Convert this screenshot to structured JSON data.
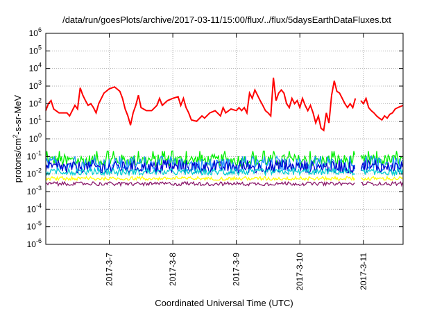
{
  "chart_data": {
    "type": "line",
    "title": "/data/run/goesPlots/archive/2017-03-11/15:00/flux/../flux/5daysEarthDataFluxes.txt",
    "xlabel": "Coordinated Universal Time (UTC)",
    "ylabel": "protons/cm2-s-sr-MeV",
    "ylabel_parts": {
      "pre": "protons/cm",
      "sup": "2",
      "post": "-s-sr-MeV"
    },
    "yscale": "log",
    "ylim_exp": [
      -6,
      6
    ],
    "y_ticks": [
      {
        "base": "10",
        "exp": "-6"
      },
      {
        "base": "10",
        "exp": "-5"
      },
      {
        "base": "10",
        "exp": "-4"
      },
      {
        "base": "10",
        "exp": "-3"
      },
      {
        "base": "10",
        "exp": "-2"
      },
      {
        "base": "10",
        "exp": "-1"
      },
      {
        "base": "10",
        "exp": "0"
      },
      {
        "base": "10",
        "exp": "1"
      },
      {
        "base": "10",
        "exp": "2"
      },
      {
        "base": "10",
        "exp": "3"
      },
      {
        "base": "10",
        "exp": "4"
      },
      {
        "base": "10",
        "exp": "5"
      },
      {
        "base": "10",
        "exp": "6"
      }
    ],
    "xlim": [
      "2017-03-06T00:00",
      "2017-03-11T15:00"
    ],
    "x_ticks": [
      {
        "label": "2017-3-7",
        "date": "2017-03-07T00:00"
      },
      {
        "label": "2017-3-8",
        "date": "2017-03-08T00:00"
      },
      {
        "label": "2017-3-9",
        "date": "2017-03-09T00:00"
      },
      {
        "label": "2017-3-10",
        "date": "2017-03-10T00:00"
      },
      {
        "label": "2017-3-11",
        "date": "2017-03-11T00:00"
      }
    ],
    "grid": true,
    "gap": [
      "2017-03-10T21:00",
      "2017-03-10T23:00"
    ],
    "series": [
      {
        "color": "#ff0000",
        "noisy": false,
        "points": [
          [
            "2017-03-06T00:00",
            40
          ],
          [
            "2017-03-06T01:00",
            100
          ],
          [
            "2017-03-06T02:00",
            150
          ],
          [
            "2017-03-06T03:00",
            50
          ],
          [
            "2017-03-06T05:00",
            30
          ],
          [
            "2017-03-06T08:00",
            30
          ],
          [
            "2017-03-06T09:00",
            20
          ],
          [
            "2017-03-06T10:00",
            40
          ],
          [
            "2017-03-06T11:00",
            80
          ],
          [
            "2017-03-06T12:00",
            50
          ],
          [
            "2017-03-06T13:00",
            800
          ],
          [
            "2017-03-06T14:00",
            300
          ],
          [
            "2017-03-06T15:00",
            150
          ],
          [
            "2017-03-06T16:00",
            80
          ],
          [
            "2017-03-06T17:00",
            100
          ],
          [
            "2017-03-06T18:00",
            60
          ],
          [
            "2017-03-06T19:00",
            30
          ],
          [
            "2017-03-06T20:00",
            100
          ],
          [
            "2017-03-06T22:00",
            400
          ],
          [
            "2017-03-07T00:00",
            700
          ],
          [
            "2017-03-07T02:00",
            900
          ],
          [
            "2017-03-07T04:00",
            500
          ],
          [
            "2017-03-07T05:00",
            200
          ],
          [
            "2017-03-07T06:00",
            50
          ],
          [
            "2017-03-07T07:00",
            20
          ],
          [
            "2017-03-07T08:00",
            6
          ],
          [
            "2017-03-07T09:00",
            30
          ],
          [
            "2017-03-07T10:00",
            80
          ],
          [
            "2017-03-07T11:00",
            300
          ],
          [
            "2017-03-07T12:00",
            60
          ],
          [
            "2017-03-07T14:00",
            40
          ],
          [
            "2017-03-07T16:00",
            40
          ],
          [
            "2017-03-07T18:00",
            80
          ],
          [
            "2017-03-07T19:00",
            200
          ],
          [
            "2017-03-07T20:00",
            80
          ],
          [
            "2017-03-07T22:00",
            150
          ],
          [
            "2017-03-08T00:00",
            200
          ],
          [
            "2017-03-08T02:00",
            250
          ],
          [
            "2017-03-08T03:00",
            80
          ],
          [
            "2017-03-08T04:00",
            200
          ],
          [
            "2017-03-08T05:00",
            60
          ],
          [
            "2017-03-08T06:00",
            30
          ],
          [
            "2017-03-08T07:00",
            12
          ],
          [
            "2017-03-08T09:00",
            10
          ],
          [
            "2017-03-08T11:00",
            20
          ],
          [
            "2017-03-08T12:00",
            15
          ],
          [
            "2017-03-08T14:00",
            30
          ],
          [
            "2017-03-08T16:00",
            40
          ],
          [
            "2017-03-08T18:00",
            20
          ],
          [
            "2017-03-08T19:00",
            60
          ],
          [
            "2017-03-08T20:00",
            30
          ],
          [
            "2017-03-08T22:00",
            50
          ],
          [
            "2017-03-09T00:00",
            40
          ],
          [
            "2017-03-09T01:00",
            60
          ],
          [
            "2017-03-09T02:00",
            40
          ],
          [
            "2017-03-09T03:00",
            60
          ],
          [
            "2017-03-09T04:00",
            30
          ],
          [
            "2017-03-09T05:00",
            400
          ],
          [
            "2017-03-09T06:00",
            200
          ],
          [
            "2017-03-09T07:00",
            600
          ],
          [
            "2017-03-09T08:00",
            300
          ],
          [
            "2017-03-09T09:00",
            150
          ],
          [
            "2017-03-09T10:00",
            80
          ],
          [
            "2017-03-09T11:00",
            40
          ],
          [
            "2017-03-09T12:00",
            30
          ],
          [
            "2017-03-09T13:00",
            20
          ],
          [
            "2017-03-09T14:00",
            3000
          ],
          [
            "2017-03-09T15:00",
            150
          ],
          [
            "2017-03-09T16:00",
            400
          ],
          [
            "2017-03-09T17:00",
            600
          ],
          [
            "2017-03-09T18:00",
            400
          ],
          [
            "2017-03-09T19:00",
            100
          ],
          [
            "2017-03-09T20:00",
            60
          ],
          [
            "2017-03-09T21:00",
            200
          ],
          [
            "2017-03-09T22:00",
            100
          ],
          [
            "2017-03-09T23:00",
            150
          ],
          [
            "2017-03-10T00:00",
            60
          ],
          [
            "2017-03-10T01:00",
            200
          ],
          [
            "2017-03-10T02:00",
            80
          ],
          [
            "2017-03-10T03:00",
            40
          ],
          [
            "2017-03-10T04:00",
            80
          ],
          [
            "2017-03-10T05:00",
            30
          ],
          [
            "2017-03-10T06:00",
            8
          ],
          [
            "2017-03-10T07:00",
            20
          ],
          [
            "2017-03-10T08:00",
            4
          ],
          [
            "2017-03-10T09:00",
            3
          ],
          [
            "2017-03-10T10:00",
            30
          ],
          [
            "2017-03-10T11:00",
            8
          ],
          [
            "2017-03-10T12:00",
            300
          ],
          [
            "2017-03-10T13:00",
            2000
          ],
          [
            "2017-03-10T14:00",
            500
          ],
          [
            "2017-03-10T15:00",
            400
          ],
          [
            "2017-03-10T16:00",
            200
          ],
          [
            "2017-03-10T17:00",
            100
          ],
          [
            "2017-03-10T18:00",
            60
          ],
          [
            "2017-03-10T19:00",
            100
          ],
          [
            "2017-03-10T20:00",
            60
          ],
          [
            "2017-03-10T21:00",
            200
          ],
          null,
          [
            "2017-03-10T23:00",
            150
          ],
          [
            "2017-03-11T00:00",
            100
          ],
          [
            "2017-03-11T01:00",
            200
          ],
          [
            "2017-03-11T02:00",
            60
          ],
          [
            "2017-03-11T03:00",
            40
          ],
          [
            "2017-03-11T04:00",
            30
          ],
          [
            "2017-03-11T05:00",
            20
          ],
          [
            "2017-03-11T06:00",
            15
          ],
          [
            "2017-03-11T07:00",
            12
          ],
          [
            "2017-03-11T08:00",
            20
          ],
          [
            "2017-03-11T09:00",
            15
          ],
          [
            "2017-03-11T10:00",
            25
          ],
          [
            "2017-03-11T11:00",
            30
          ],
          [
            "2017-03-11T12:00",
            50
          ],
          [
            "2017-03-11T13:00",
            60
          ],
          [
            "2017-03-11T15:00",
            80
          ]
        ]
      },
      {
        "color": "#00ee00",
        "noisy": true,
        "center": 0.06,
        "range": [
          0.035,
          0.2
        ]
      },
      {
        "color": "#1e90ff",
        "noisy": true,
        "center": 0.035,
        "range": [
          0.015,
          0.1
        ]
      },
      {
        "color": "#0000cd",
        "noisy": true,
        "center": 0.025,
        "range": [
          0.012,
          0.06
        ]
      },
      {
        "color": "#00ced1",
        "noisy": true,
        "center": 0.013,
        "range": [
          0.009,
          0.02
        ]
      },
      {
        "color": "#ffff00",
        "noisy": true,
        "center": 0.0055,
        "range": [
          0.0045,
          0.007
        ]
      },
      {
        "color": "#8b1a6b",
        "noisy": true,
        "center": 0.0028,
        "range": [
          0.0022,
          0.0035
        ]
      }
    ]
  }
}
